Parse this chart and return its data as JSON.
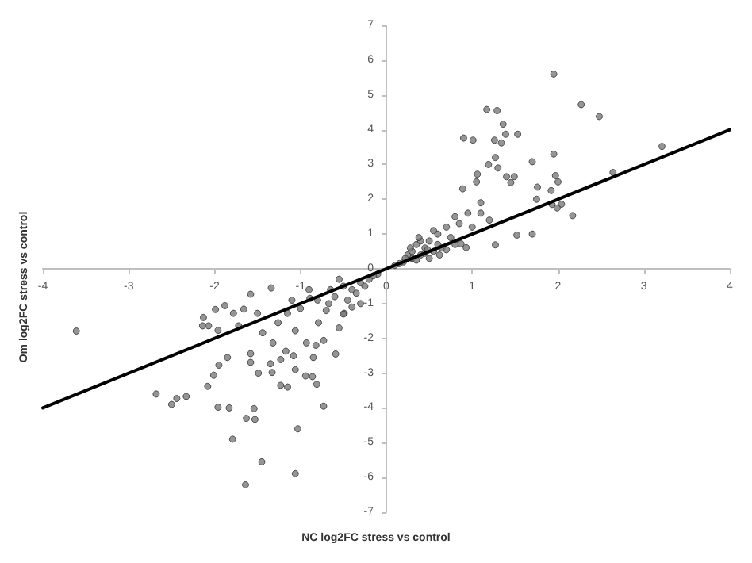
{
  "chart_data": {
    "type": "scatter",
    "xlabel": "NC log2FC stress vs control",
    "ylabel": "Om log2FC stress vs control",
    "xlim": [
      -4,
      4
    ],
    "ylim": [
      -7,
      7
    ],
    "xticks": [
      -4,
      -3,
      -2,
      -1,
      0,
      1,
      2,
      3,
      4
    ],
    "yticks": [
      -7,
      -6,
      -5,
      -4,
      -3,
      -2,
      -1,
      0,
      1,
      2,
      3,
      4,
      5,
      6,
      7
    ],
    "grid": false,
    "marker": "circle",
    "series": [
      {
        "color": "#7a7a7a",
        "x": [
          1.95,
          2.27,
          2.48,
          1.17,
          1.29,
          1.36,
          1.39,
          1.53,
          0.9,
          1.01,
          1.26,
          1.34,
          3.21,
          1.7,
          1.19,
          1.27,
          1.95,
          1.3,
          2.64,
          1.06,
          1.4,
          1.49,
          1.97,
          1.05,
          1.45,
          2.0,
          1.76,
          0.89,
          1.92,
          1.75,
          1.93,
          2.04,
          1.99,
          2.17,
          1.7,
          1.52,
          1.27,
          0.87,
          0.93,
          0.8,
          0.7,
          0.95,
          1.1,
          1.2,
          0.6,
          0.65,
          0.75,
          0.85,
          0.5,
          0.55,
          0.45,
          0.4,
          0.35,
          0.3,
          0.25,
          0.2,
          0.15,
          0.1,
          0.3,
          0.4,
          0.5,
          0.6,
          0.35,
          0.45,
          0.55,
          0.28,
          0.38,
          0.48,
          0.22,
          0.62,
          0.7,
          0.8,
          1.0,
          1.1,
          -3.61,
          -2.68,
          -2.5,
          -2.44,
          -2.33,
          -2.13,
          -2.14,
          -2.07,
          -1.99,
          -1.88,
          -1.96,
          -2.08,
          -2.01,
          -1.95,
          -1.85,
          -1.96,
          -1.83,
          -1.79,
          -1.63,
          -1.53,
          -1.54,
          -1.45,
          -1.64,
          -1.06,
          -1.03,
          -0.73,
          -0.81,
          -0.86,
          -0.94,
          -1.06,
          -1.23,
          -1.15,
          -1.33,
          -1.49,
          -1.58,
          -1.58,
          -1.35,
          -1.23,
          -1.17,
          -1.08,
          -0.59,
          -0.85,
          -0.82,
          -0.93,
          -1.66,
          -1.58,
          -1.34,
          -1.78,
          -1.72,
          -1.5,
          -1.44,
          -1.32,
          -1.26,
          -1.15,
          -1.06,
          -0.79,
          -0.73,
          -0.55,
          -0.49,
          -0.67,
          -0.89,
          -1.0,
          -0.5,
          -0.4,
          -0.3,
          -0.2,
          -0.1,
          -0.45,
          -0.35,
          -0.25,
          -0.6,
          -0.7,
          -0.8,
          -0.15,
          -0.55,
          -0.65,
          -0.3,
          -0.4,
          -0.5,
          -0.9,
          -1.1
        ],
        "values": [
          5.6,
          4.72,
          4.38,
          4.58,
          4.55,
          4.16,
          3.87,
          3.87,
          3.76,
          3.7,
          3.7,
          3.62,
          3.52,
          3.08,
          3.0,
          3.2,
          3.3,
          2.9,
          2.77,
          2.72,
          2.65,
          2.65,
          2.68,
          2.5,
          2.48,
          2.5,
          2.35,
          2.3,
          2.25,
          2.0,
          1.85,
          1.86,
          1.75,
          1.53,
          1.0,
          0.97,
          0.69,
          0.72,
          0.61,
          1.5,
          1.2,
          1.6,
          1.9,
          1.4,
          1.0,
          0.6,
          0.9,
          1.3,
          0.8,
          0.5,
          0.6,
          0.4,
          0.7,
          0.3,
          0.4,
          0.2,
          0.15,
          0.1,
          0.5,
          0.8,
          0.3,
          0.7,
          0.25,
          0.45,
          1.1,
          0.6,
          0.9,
          0.55,
          0.3,
          0.4,
          0.55,
          0.7,
          1.2,
          1.6,
          -1.79,
          -3.6,
          -3.9,
          -3.73,
          -3.67,
          -1.4,
          -1.64,
          -1.64,
          -1.17,
          -1.06,
          -1.77,
          -3.38,
          -3.06,
          -2.77,
          -2.55,
          -3.98,
          -4.0,
          -4.9,
          -4.3,
          -4.33,
          -4.02,
          -5.55,
          -6.21,
          -5.89,
          -4.6,
          -3.95,
          -3.32,
          -3.1,
          -3.08,
          -2.9,
          -3.35,
          -3.4,
          -2.98,
          -3.0,
          -2.69,
          -2.44,
          -2.73,
          -2.61,
          -2.37,
          -2.5,
          -2.45,
          -2.55,
          -2.2,
          -2.13,
          -1.16,
          -0.73,
          -0.55,
          -1.28,
          -1.64,
          -1.28,
          -1.84,
          -2.13,
          -1.55,
          -1.28,
          -1.78,
          -1.55,
          -2.06,
          -1.7,
          -1.28,
          -1.0,
          -0.85,
          -1.14,
          -0.5,
          -0.6,
          -0.4,
          -0.3,
          -0.15,
          -0.9,
          -0.7,
          -0.5,
          -0.8,
          -1.2,
          -0.9,
          -0.2,
          -0.3,
          -0.6,
          -1.0,
          -1.1,
          -1.3,
          -0.6,
          -0.9
        ]
      },
      {
        "type": "line",
        "color": "#000000",
        "x": [
          -4,
          4
        ],
        "values": [
          -4,
          4
        ],
        "marker": "none",
        "line_style": "solid"
      }
    ]
  }
}
